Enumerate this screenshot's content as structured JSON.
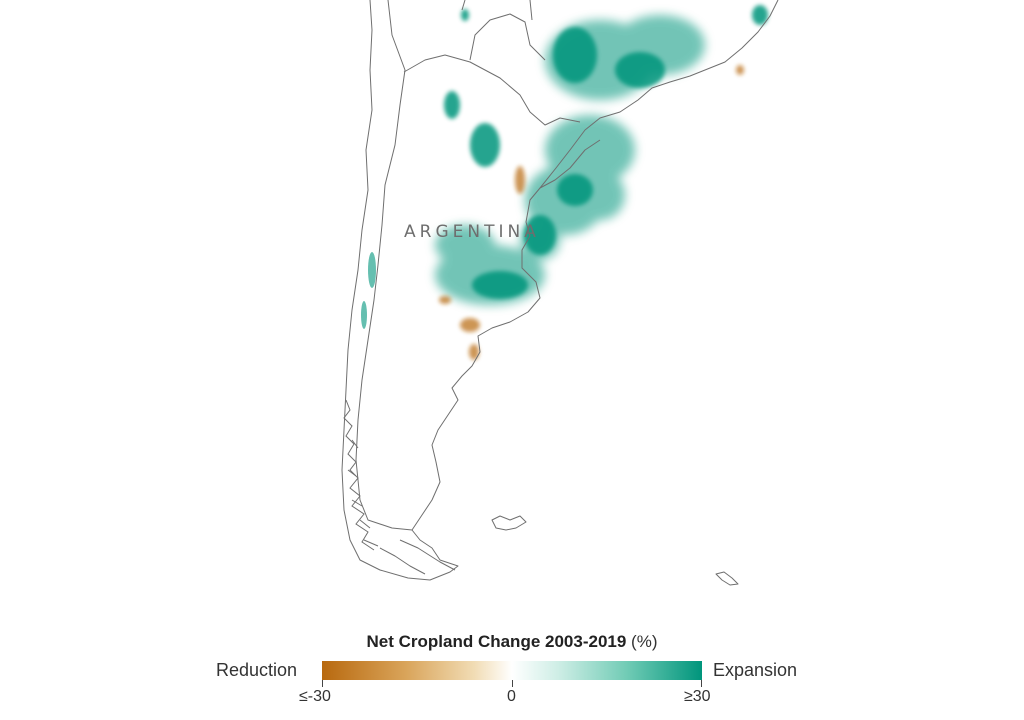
{
  "map": {
    "country_label": "ARGENTINA",
    "colors": {
      "outline": "#6f6f6f",
      "expansion": "#00957c",
      "reduction": "#b8690f"
    }
  },
  "legend": {
    "title": "Net Cropland Change 2003-2019",
    "unit": "(%)",
    "left_label": "Reduction",
    "right_label": "Expansion",
    "ticks": [
      "≤-30",
      "0",
      "≥30"
    ],
    "scale_min": -30,
    "scale_max": 30,
    "colors": [
      "#b8690f",
      "#ffffff",
      "#00957c"
    ]
  }
}
